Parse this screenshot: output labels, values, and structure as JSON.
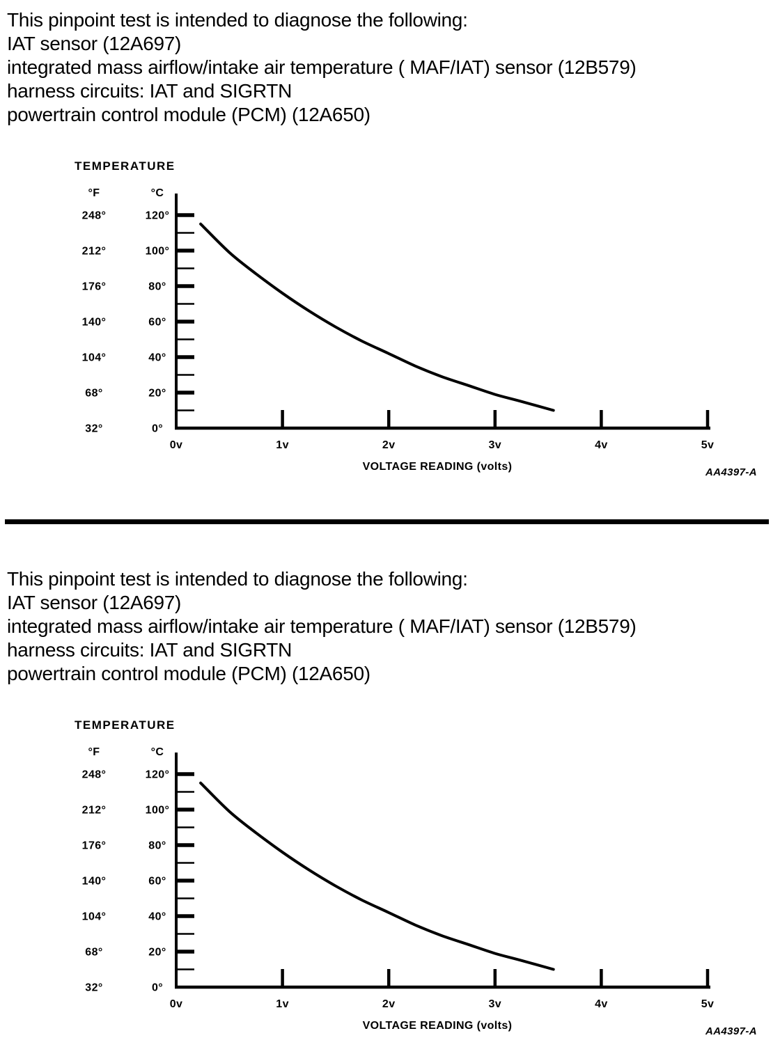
{
  "page": {
    "background": "#ffffff",
    "text_color": "#000000"
  },
  "sections": [
    {
      "intro_lines": [
        "This pinpoint test is intended to diagnose the following:",
        "IAT sensor (12A697)",
        "integrated mass airflow/intake air temperature ( MAF/IAT) sensor (12B579)",
        "harness circuits: IAT and SIGRTN",
        "powertrain control module (PCM) (12A650)"
      ]
    },
    {
      "intro_lines": [
        "This pinpoint test is intended to diagnose the following:",
        "IAT sensor (12A697)",
        "integrated mass airflow/intake air temperature ( MAF/IAT) sensor (12B579)",
        "harness circuits: IAT and SIGRTN",
        "powertrain control module (PCM) (12A650)"
      ]
    }
  ],
  "chart_data": [
    {
      "type": "line",
      "title": "TEMPERATURE",
      "xlabel": "VOLTAGE READING (volts)",
      "figure_code": "AA4397-A",
      "grid": false,
      "xlim": [
        0,
        5
      ],
      "ylim_celsius": [
        0,
        130
      ],
      "x_ticks": [
        "0v",
        "1v",
        "2v",
        "3v",
        "4v",
        "5v"
      ],
      "x_tick_values": [
        0,
        1,
        2,
        3,
        4,
        5
      ],
      "y_axis": {
        "fahrenheit_header": "°F",
        "celsius_header": "°C",
        "tick_step_minor": 10,
        "tick_step_labeled": 20,
        "labels": [
          {
            "fahrenheit": "248°",
            "celsius": "120°",
            "value_c": 120
          },
          {
            "fahrenheit": "212°",
            "celsius": "100°",
            "value_c": 100
          },
          {
            "fahrenheit": "176°",
            "celsius": "80°",
            "value_c": 80
          },
          {
            "fahrenheit": "140°",
            "celsius": "60°",
            "value_c": 60
          },
          {
            "fahrenheit": "104°",
            "celsius": "40°",
            "value_c": 40
          },
          {
            "fahrenheit": "68°",
            "celsius": "20°",
            "value_c": 20
          },
          {
            "fahrenheit": "32°",
            "celsius": "0°",
            "value_c": 0
          }
        ]
      },
      "series": [
        {
          "name": "IAT sensor temperature vs voltage reading",
          "points_v_c": [
            [
              0.23,
              115
            ],
            [
              0.5,
              99
            ],
            [
              0.75,
              87
            ],
            [
              1.0,
              76
            ],
            [
              1.25,
              66
            ],
            [
              1.5,
              57
            ],
            [
              1.75,
              49
            ],
            [
              2.0,
              42
            ],
            [
              2.25,
              35
            ],
            [
              2.5,
              29
            ],
            [
              2.75,
              24
            ],
            [
              3.0,
              19
            ],
            [
              3.25,
              15
            ],
            [
              3.55,
              10
            ]
          ]
        }
      ]
    },
    {
      "type": "line",
      "title": "TEMPERATURE",
      "xlabel": "VOLTAGE READING (volts)",
      "figure_code": "AA4397-A",
      "grid": false,
      "xlim": [
        0,
        5
      ],
      "ylim_celsius": [
        0,
        130
      ],
      "x_ticks": [
        "0v",
        "1v",
        "2v",
        "3v",
        "4v",
        "5v"
      ],
      "x_tick_values": [
        0,
        1,
        2,
        3,
        4,
        5
      ],
      "y_axis": {
        "fahrenheit_header": "°F",
        "celsius_header": "°C",
        "tick_step_minor": 10,
        "tick_step_labeled": 20,
        "labels": [
          {
            "fahrenheit": "248°",
            "celsius": "120°",
            "value_c": 120
          },
          {
            "fahrenheit": "212°",
            "celsius": "100°",
            "value_c": 100
          },
          {
            "fahrenheit": "176°",
            "celsius": "80°",
            "value_c": 80
          },
          {
            "fahrenheit": "140°",
            "celsius": "60°",
            "value_c": 60
          },
          {
            "fahrenheit": "104°",
            "celsius": "40°",
            "value_c": 40
          },
          {
            "fahrenheit": "68°",
            "celsius": "20°",
            "value_c": 20
          },
          {
            "fahrenheit": "32°",
            "celsius": "0°",
            "value_c": 0
          }
        ]
      },
      "series": [
        {
          "name": "IAT sensor temperature vs voltage reading",
          "points_v_c": [
            [
              0.23,
              115
            ],
            [
              0.5,
              99
            ],
            [
              0.75,
              87
            ],
            [
              1.0,
              76
            ],
            [
              1.25,
              66
            ],
            [
              1.5,
              57
            ],
            [
              1.75,
              49
            ],
            [
              2.0,
              42
            ],
            [
              2.25,
              35
            ],
            [
              2.5,
              29
            ],
            [
              2.75,
              24
            ],
            [
              3.0,
              19
            ],
            [
              3.25,
              15
            ],
            [
              3.55,
              10
            ]
          ]
        }
      ]
    }
  ]
}
